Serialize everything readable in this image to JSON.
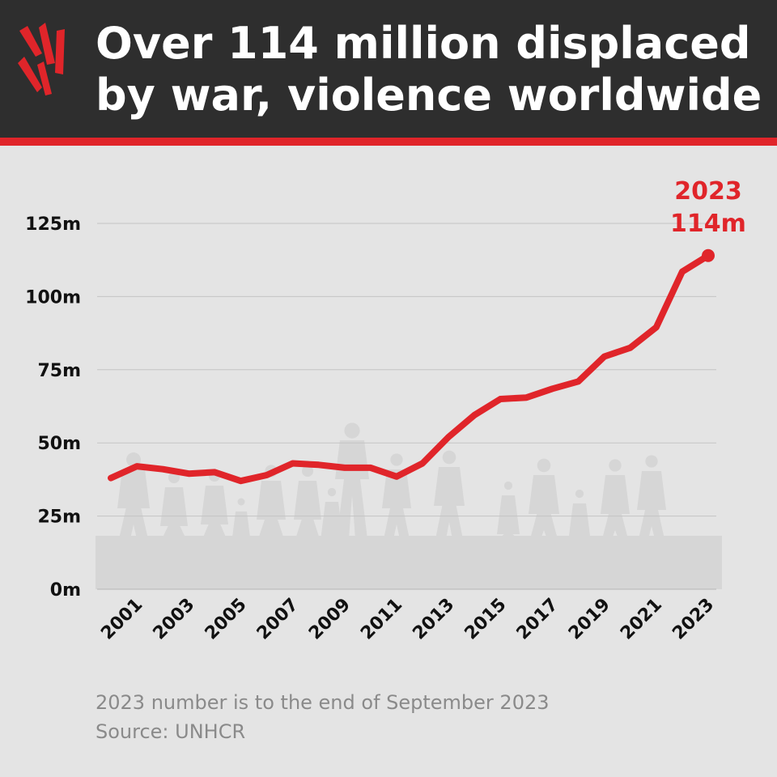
{
  "header": {
    "title_line1": "Over 114 million displaced",
    "title_line2": "by war, violence worldwide",
    "bg_color": "#2e2e2e",
    "accent_color": "#e0252a"
  },
  "footer": {
    "note": "2023 number is to the end of September 2023",
    "source": "Source: UNHCR"
  },
  "chart_data": {
    "type": "line",
    "title": "Over 114 million displaced by war, violence worldwide",
    "xlabel": "",
    "ylabel": "",
    "x": [
      2000,
      2001,
      2002,
      2003,
      2004,
      2005,
      2006,
      2007,
      2008,
      2009,
      2010,
      2011,
      2012,
      2013,
      2014,
      2015,
      2016,
      2017,
      2018,
      2019,
      2020,
      2021,
      2022,
      2023
    ],
    "x_tick_labels": [
      "2001",
      "2003",
      "2005",
      "2007",
      "2009",
      "2011",
      "2013",
      "2015",
      "2017",
      "2019",
      "2021",
      "2023"
    ],
    "y_ticks": [
      0,
      25,
      50,
      75,
      100,
      125
    ],
    "y_tick_labels": [
      "0m",
      "25m",
      "50m",
      "75m",
      "100m",
      "125m"
    ],
    "ylim": [
      0,
      125
    ],
    "grid": true,
    "series": [
      {
        "values": [
          38,
          42,
          41,
          39.5,
          40,
          37,
          39,
          43,
          42.5,
          41.5,
          41.5,
          38.5,
          43,
          52,
          59.5,
          65,
          65.5,
          68.5,
          71,
          79.5,
          82.5,
          89.5,
          108.5,
          114
        ],
        "color": "#e0252a"
      }
    ],
    "annotation": {
      "year_label": "2023",
      "value_label": "114m",
      "color": "#e0252a"
    },
    "background_silhouette": "walking-people"
  }
}
